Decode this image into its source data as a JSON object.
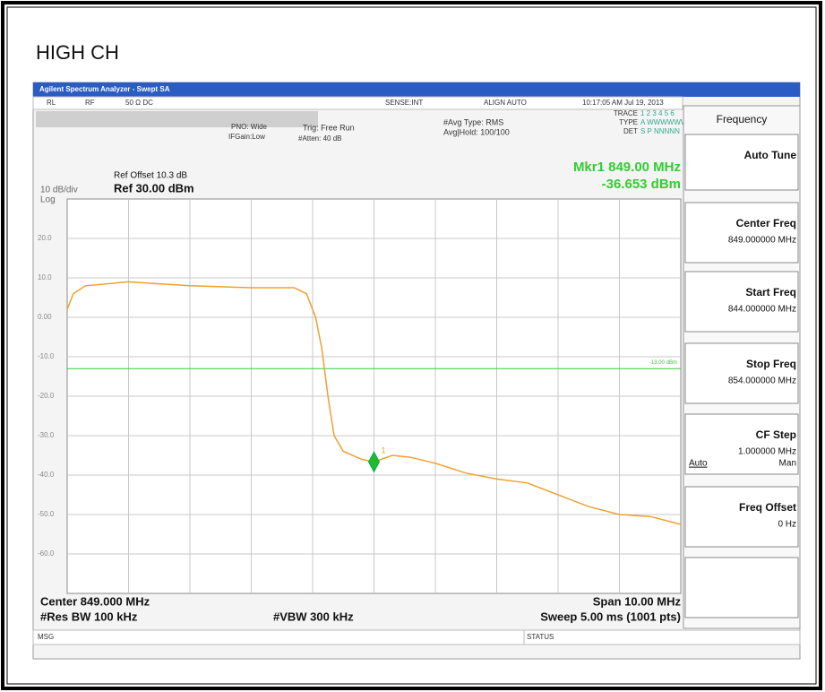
{
  "page_title": "HIGH CH",
  "window": {
    "title": "Agilent Spectrum Analyzer - Swept SA",
    "status_row": [
      "RL",
      "RF",
      "50 Ω DC",
      "SENSE:INT",
      "ALIGN AUTO",
      "10:17:05 AM Jul 19, 2013"
    ],
    "settings": {
      "pno": "PNO: Wide",
      "if_gain": "IFGain:Low",
      "trig": "Trig: Free Run",
      "atten": "#Atten: 40 dB",
      "avg_type": "#Avg Type: RMS",
      "avg_hold": "Avg|Hold: 100/100"
    },
    "trace_info": [
      [
        "TRACE",
        "1 2 3 4 5 6"
      ],
      [
        "TYPE",
        "A WWWWWW"
      ],
      [
        "DET",
        "S P NNNNN"
      ]
    ],
    "message": "MSG",
    "status": "STATUS"
  },
  "chart_data": {
    "type": "line",
    "ref_offset": "Ref Offset 10.3 dB",
    "scale": "10 dB/div",
    "ref_level": "Ref 30.00 dBm",
    "scale_type": "Log",
    "marker_readout": [
      "Mkr1 849.00 MHz",
      "-36.653 dBm"
    ],
    "x": [
      844.0,
      844.1,
      844.3,
      845.0,
      845.5,
      846.0,
      847.0,
      847.7,
      847.9,
      848.05,
      848.15,
      848.25,
      848.35,
      848.5,
      848.8,
      849.0,
      849.3,
      849.6,
      850.0,
      850.5,
      851.0,
      851.5,
      852.0,
      852.5,
      853.0,
      853.5,
      854.0
    ],
    "values": [
      2,
      6,
      8,
      9,
      8.5,
      8,
      7.5,
      7.5,
      6,
      0,
      -8,
      -20,
      -30,
      -34,
      -36,
      -36.65,
      -35,
      -35.5,
      -37,
      -39.5,
      -41,
      -42,
      -45,
      -48,
      -50,
      -50.5,
      -52.5
    ],
    "color": "#f0a030",
    "xlim": [
      844,
      854
    ],
    "xticks": [
      845,
      846,
      847,
      848,
      849,
      850,
      851,
      852,
      853
    ],
    "ylim": [
      -70,
      30
    ],
    "yticks": [
      {
        "value": 20,
        "label": "20.0"
      },
      {
        "value": 10,
        "label": "10.0"
      },
      {
        "value": 0,
        "label": "0.00"
      },
      {
        "value": -10,
        "label": "-10.0"
      },
      {
        "value": -20,
        "label": "-20.0"
      },
      {
        "value": -30,
        "label": "-30.0"
      },
      {
        "value": -40,
        "label": "-40.0"
      },
      {
        "value": -50,
        "label": "-50.0"
      },
      {
        "value": -60,
        "label": "-60.0"
      }
    ],
    "grid": true,
    "display_line": {
      "value": -13,
      "label": "-13.00 dBm",
      "color": "#33cc33"
    },
    "marker": {
      "x": 849,
      "y": -36.653,
      "label": "1",
      "color": "#22bb22"
    },
    "footer": {
      "center": "Center 849.000 MHz",
      "rbw": "#Res BW 100 kHz",
      "vbw": "#VBW 300 kHz",
      "span": "Span 10.00 MHz",
      "sweep": "Sweep  5.00 ms (1001 pts)"
    }
  },
  "softkeys": {
    "menu": "Frequency",
    "keys": [
      {
        "label": "Auto Tune"
      },
      {
        "label": "Center Freq",
        "value": "849.000000 MHz"
      },
      {
        "label": "Start Freq",
        "value": "844.000000 MHz"
      },
      {
        "label": "Stop Freq",
        "value": "854.000000 MHz"
      },
      {
        "label": "CF Step",
        "value": "1.000000 MHz",
        "options": [
          "Auto",
          "Man"
        ]
      },
      {
        "label": "Freq Offset",
        "value": "0 Hz"
      }
    ]
  }
}
